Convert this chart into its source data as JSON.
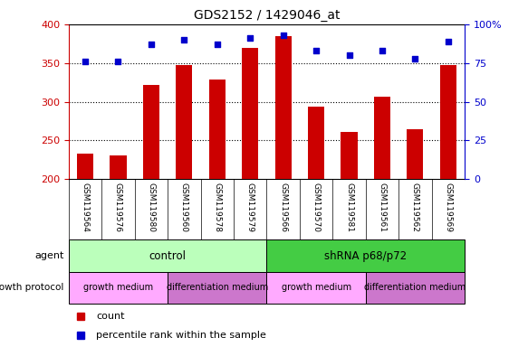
{
  "title": "GDS2152 / 1429046_at",
  "samples": [
    "GSM119564",
    "GSM119576",
    "GSM119580",
    "GSM119560",
    "GSM119578",
    "GSM119579",
    "GSM119566",
    "GSM119570",
    "GSM119581",
    "GSM119561",
    "GSM119562",
    "GSM119569"
  ],
  "counts": [
    233,
    230,
    322,
    347,
    329,
    370,
    385,
    294,
    261,
    307,
    264,
    347
  ],
  "percentiles": [
    76,
    76,
    87,
    90,
    87,
    91,
    93,
    83,
    80,
    83,
    78,
    89
  ],
  "ylim_left": [
    200,
    400
  ],
  "ylim_right": [
    0,
    100
  ],
  "yticks_left": [
    200,
    250,
    300,
    350,
    400
  ],
  "yticks_right": [
    0,
    25,
    50,
    75,
    100
  ],
  "right_axis_labels": [
    "0",
    "25",
    "50",
    "75",
    "100%"
  ],
  "bar_color": "#cc0000",
  "dot_color": "#0000cc",
  "sample_bg": "#c8c8c8",
  "agent_groups": [
    {
      "label": "control",
      "start": 0,
      "end": 6,
      "color": "#bbffbb"
    },
    {
      "label": "shRNA p68/p72",
      "start": 6,
      "end": 12,
      "color": "#44cc44"
    }
  ],
  "growth_groups": [
    {
      "label": "growth medium",
      "start": 0,
      "end": 3,
      "color": "#ffaaff"
    },
    {
      "label": "differentiation medium",
      "start": 3,
      "end": 6,
      "color": "#cc77cc"
    },
    {
      "label": "growth medium",
      "start": 6,
      "end": 9,
      "color": "#ffaaff"
    },
    {
      "label": "differentiation medium",
      "start": 9,
      "end": 12,
      "color": "#cc77cc"
    }
  ],
  "legend_count_label": "count",
  "legend_pct_label": "percentile rank within the sample",
  "agent_label": "agent",
  "growth_label": "growth protocol",
  "hgrid_vals": [
    250,
    300,
    350
  ]
}
